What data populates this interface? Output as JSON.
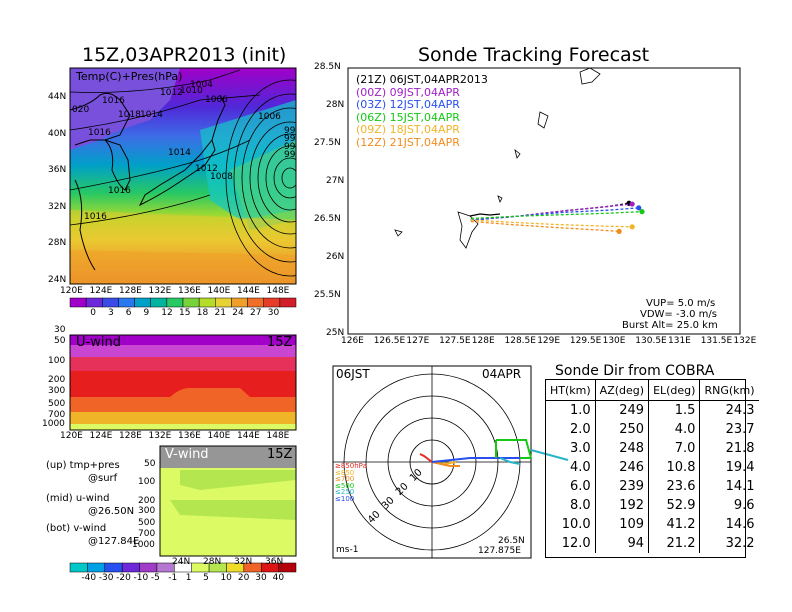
{
  "map_panel": {
    "title": "15Z,03APR2013 (init)",
    "subtitle": "Temp(C)+Pres(hPa)",
    "lat_ticks": [
      "44N",
      "40N",
      "36N",
      "32N",
      "28N",
      "24N"
    ],
    "lon_ticks": [
      "120E",
      "124E",
      "128E",
      "132E",
      "136E",
      "140E",
      "144E",
      "148E"
    ],
    "isobar_labels": [
      "1004",
      "1012",
      "1010",
      "1016",
      "1006",
      "020",
      "1018",
      "1014",
      "1006",
      "1016",
      "1014",
      "1012",
      "1008",
      "1016",
      "1016",
      "99",
      "99",
      "99",
      "99"
    ],
    "colorbar": {
      "ticks": [
        "0",
        "3",
        "6",
        "9",
        "12",
        "15",
        "18",
        "21",
        "24",
        "27",
        "30"
      ],
      "colors": [
        "#a000c8",
        "#6e28dc",
        "#3c4be6",
        "#2878f0",
        "#00a0c8",
        "#00b4a0",
        "#28c864",
        "#78d23c",
        "#b4dc28",
        "#e6d232",
        "#f0a028",
        "#f06e28",
        "#e63c28",
        "#d21e28"
      ]
    }
  },
  "u_panel": {
    "label": "U-wind",
    "time": "15Z",
    "y_ticks": [
      "30",
      "50",
      "100",
      "200",
      "300",
      "500",
      "700",
      "1000"
    ],
    "x_ticks": [
      "120E",
      "124E",
      "128E",
      "132E",
      "136E",
      "140E",
      "144E",
      "148E"
    ]
  },
  "v_panel": {
    "label": "V-wind",
    "time": "15Z",
    "y_ticks": [
      "50",
      "100",
      "200",
      "300",
      "500",
      "700",
      "1000"
    ],
    "x_ticks": [
      "24N",
      "28N",
      "32N",
      "36N"
    ],
    "colorbar": {
      "ticks": [
        "-40",
        "-30",
        "-20",
        "-10",
        "-5",
        "-1",
        "1",
        "5",
        "10",
        "20",
        "30",
        "40"
      ],
      "colors": [
        "#00c8c8",
        "#00a0e6",
        "#2850f0",
        "#6e28dc",
        "#a03cc8",
        "#b478d2",
        "#ffffff",
        "#dcfa64",
        "#b4e650",
        "#f0dc28",
        "#f06428",
        "#dc1414",
        "#b4000a"
      ]
    }
  },
  "legend_text": {
    "up": "(up) tmp+pres",
    "up2": "@surf",
    "mid": "(mid) u-wind",
    "mid2": "@26.50N",
    "bot": "(bot) v-wind",
    "bot2": "@127.84E"
  },
  "tracking": {
    "title": "Sonde Tracking Forecast",
    "entries": [
      {
        "text": "(21Z) 06JST,04APR2013",
        "color": "#000000"
      },
      {
        "text": "(00Z) 09JST,04APR",
        "color": "#a020c8"
      },
      {
        "text": "(03Z) 12JST,04APR",
        "color": "#2850f0"
      },
      {
        "text": "(06Z) 15JST,04APR",
        "color": "#14c814"
      },
      {
        "text": "(09Z) 18JST,04APR",
        "color": "#f0b428"
      },
      {
        "text": "(12Z) 21JST,04APR",
        "color": "#f08c1e"
      }
    ],
    "lat_ticks": [
      "28.5N",
      "28N",
      "27.5N",
      "27N",
      "26.5N",
      "26N",
      "25.5N",
      "25N"
    ],
    "lon_ticks": [
      "126E",
      "126.5E",
      "127E",
      "127.5E",
      "128E",
      "128.5E",
      "129E",
      "129.5E",
      "130E",
      "130.5E",
      "131E",
      "131.5E",
      "132E"
    ],
    "params": {
      "vup": "VUP=  5.0  m/s",
      "vdw": "VDW= -3.0  m/s",
      "burst": "Burst Alt= 25.0  km"
    }
  },
  "chart_data": {
    "type": "line",
    "title": "Sonde Tracking Forecast",
    "xlim": [
      126,
      132
    ],
    "ylim": [
      25,
      28.5
    ],
    "series": [
      {
        "name": "(21Z) 06JST,04APR2013",
        "color": "#000000",
        "x": [
          127.88,
          128.6,
          129.3,
          130.0,
          130.3
        ],
        "y": [
          26.5,
          26.55,
          26.62,
          26.68,
          26.72
        ]
      },
      {
        "name": "(00Z) 09JST,04APR",
        "color": "#a020c8",
        "x": [
          127.88,
          128.6,
          129.3,
          130.0,
          130.35
        ],
        "y": [
          26.5,
          26.55,
          26.62,
          26.68,
          26.71
        ]
      },
      {
        "name": "(03Z) 12JST,04APR",
        "color": "#2850f0",
        "x": [
          127.88,
          128.6,
          129.3,
          130.0,
          130.45
        ],
        "y": [
          26.5,
          26.55,
          26.6,
          26.63,
          26.66
        ]
      },
      {
        "name": "(06Z) 15JST,04APR",
        "color": "#14c814",
        "x": [
          127.88,
          128.6,
          129.3,
          130.0,
          130.5
        ],
        "y": [
          26.52,
          26.55,
          26.57,
          26.59,
          26.61
        ]
      },
      {
        "name": "(09Z) 18JST,04APR",
        "color": "#f0b428",
        "x": [
          127.88,
          128.5,
          129.2,
          129.9,
          130.35
        ],
        "y": [
          26.5,
          26.47,
          26.44,
          26.42,
          26.41
        ]
      },
      {
        "name": "(12Z) 21JST,04APR",
        "color": "#f08c1e",
        "x": [
          127.88,
          128.5,
          129.2,
          129.8,
          130.15
        ],
        "y": [
          26.48,
          26.44,
          26.4,
          26.37,
          26.35
        ]
      }
    ]
  },
  "polar": {
    "time": "06JST",
    "date": "04APR",
    "rings": [
      "10",
      "20",
      "30",
      "40"
    ],
    "unit": "ms-1",
    "lat": "26.5N",
    "lon": "127.875E",
    "levels": [
      {
        "text": "≥850hPa",
        "color": "#e62828"
      },
      {
        "text": "≤850",
        "color": "#f0b428"
      },
      {
        "text": "≤700",
        "color": "#f08c1e"
      },
      {
        "text": "≤500",
        "color": "#14c814"
      },
      {
        "text": "≤250",
        "color": "#28b4c8"
      },
      {
        "text": "≤100",
        "color": "#2850f0"
      }
    ]
  },
  "sonde_table": {
    "title": "Sonde Dir from COBRA",
    "headers": [
      "HT(km)",
      "AZ(deg)",
      "EL(deg)",
      "RNG(km)"
    ],
    "rows": [
      [
        "1.0",
        "249",
        "1.5",
        "24.3"
      ],
      [
        "2.0",
        "250",
        "4.0",
        "23.7"
      ],
      [
        "3.0",
        "248",
        "7.0",
        "21.8"
      ],
      [
        "4.0",
        "246",
        "10.8",
        "19.4"
      ],
      [
        "6.0",
        "239",
        "23.6",
        "14.1"
      ],
      [
        "8.0",
        "192",
        "52.9",
        "9.6"
      ],
      [
        "10.0",
        "109",
        "41.2",
        "14.6"
      ],
      [
        "12.0",
        "94",
        "21.2",
        "32.2"
      ]
    ]
  }
}
